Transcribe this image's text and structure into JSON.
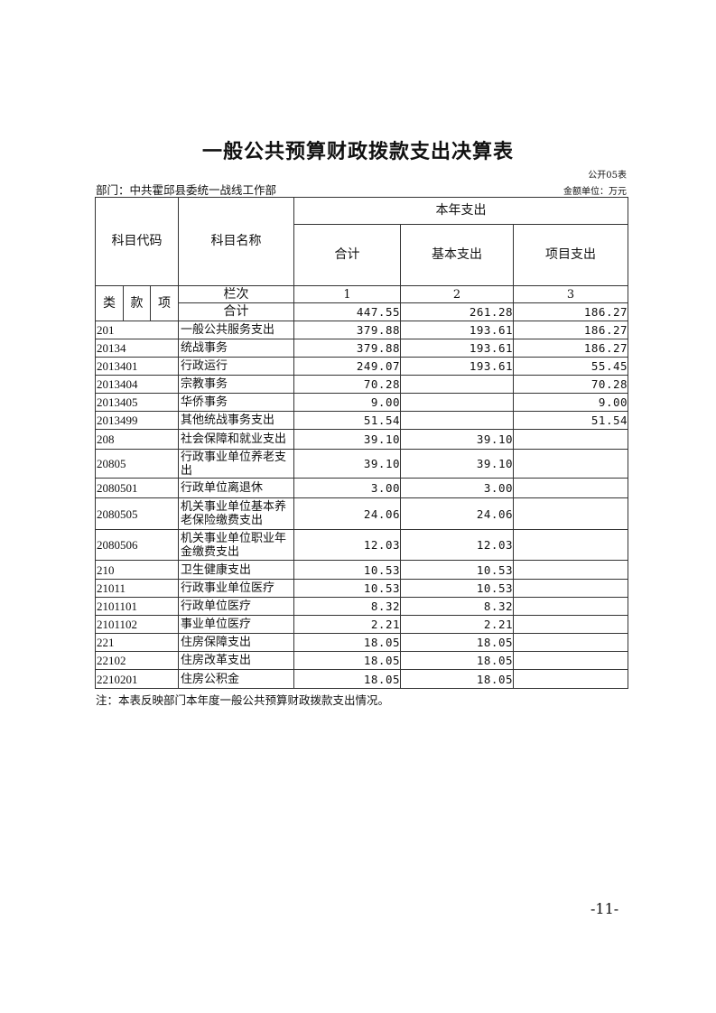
{
  "title": "一般公共预算财政拨款支出决算表",
  "form_no": "公开05表",
  "department": "部门：中共霍邱县委统一战线工作部",
  "unit": "金额单位：万元",
  "header": {
    "code": "科目代码",
    "name": "科目名称",
    "year_expense": "本年支出",
    "total": "合计",
    "basic": "基本支出",
    "project": "项目支出",
    "lei": "类",
    "kuan": "款",
    "xiang": "项",
    "column_no": "栏次",
    "col1": "1",
    "col2": "2",
    "col3": "3"
  },
  "total_row": {
    "label": "合计",
    "total": "447.55",
    "basic": "261.28",
    "project": "186.27"
  },
  "rows": [
    {
      "code": "201",
      "name": "一般公共服务支出",
      "total": "379.88",
      "basic": "193.61",
      "project": "186.27"
    },
    {
      "code": "20134",
      "name": "统战事务",
      "total": "379.88",
      "basic": "193.61",
      "project": "186.27"
    },
    {
      "code": "2013401",
      "name": "行政运行",
      "total": "249.07",
      "basic": "193.61",
      "project": "55.45"
    },
    {
      "code": "2013404",
      "name": "宗教事务",
      "total": "70.28",
      "basic": "",
      "project": "70.28"
    },
    {
      "code": "2013405",
      "name": "华侨事务",
      "total": "9.00",
      "basic": "",
      "project": "9.00"
    },
    {
      "code": "2013499",
      "name": "其他统战事务支出",
      "total": "51.54",
      "basic": "",
      "project": "51.54"
    },
    {
      "code": "208",
      "name": "社会保障和就业支出",
      "total": "39.10",
      "basic": "39.10",
      "project": ""
    },
    {
      "code": "20805",
      "name": "行政事业单位养老支出",
      "total": "39.10",
      "basic": "39.10",
      "project": ""
    },
    {
      "code": "2080501",
      "name": "行政单位离退休",
      "total": "3.00",
      "basic": "3.00",
      "project": ""
    },
    {
      "code": "2080505",
      "name": "机关事业单位基本养老保险缴费支出",
      "total": "24.06",
      "basic": "24.06",
      "project": ""
    },
    {
      "code": "2080506",
      "name": "机关事业单位职业年金缴费支出",
      "total": "12.03",
      "basic": "12.03",
      "project": ""
    },
    {
      "code": "210",
      "name": "卫生健康支出",
      "total": "10.53",
      "basic": "10.53",
      "project": ""
    },
    {
      "code": "21011",
      "name": "行政事业单位医疗",
      "total": "10.53",
      "basic": "10.53",
      "project": ""
    },
    {
      "code": "2101101",
      "name": "行政单位医疗",
      "total": "8.32",
      "basic": "8.32",
      "project": ""
    },
    {
      "code": "2101102",
      "name": "事业单位医疗",
      "total": "2.21",
      "basic": "2.21",
      "project": ""
    },
    {
      "code": "221",
      "name": "住房保障支出",
      "total": "18.05",
      "basic": "18.05",
      "project": ""
    },
    {
      "code": "22102",
      "name": "住房改革支出",
      "total": "18.05",
      "basic": "18.05",
      "project": ""
    },
    {
      "code": "2210201",
      "name": "住房公积金",
      "total": "18.05",
      "basic": "18.05",
      "project": ""
    }
  ],
  "note": "注：本表反映部门本年度一般公共预算财政拨款支出情况。",
  "page_number": "-11-"
}
